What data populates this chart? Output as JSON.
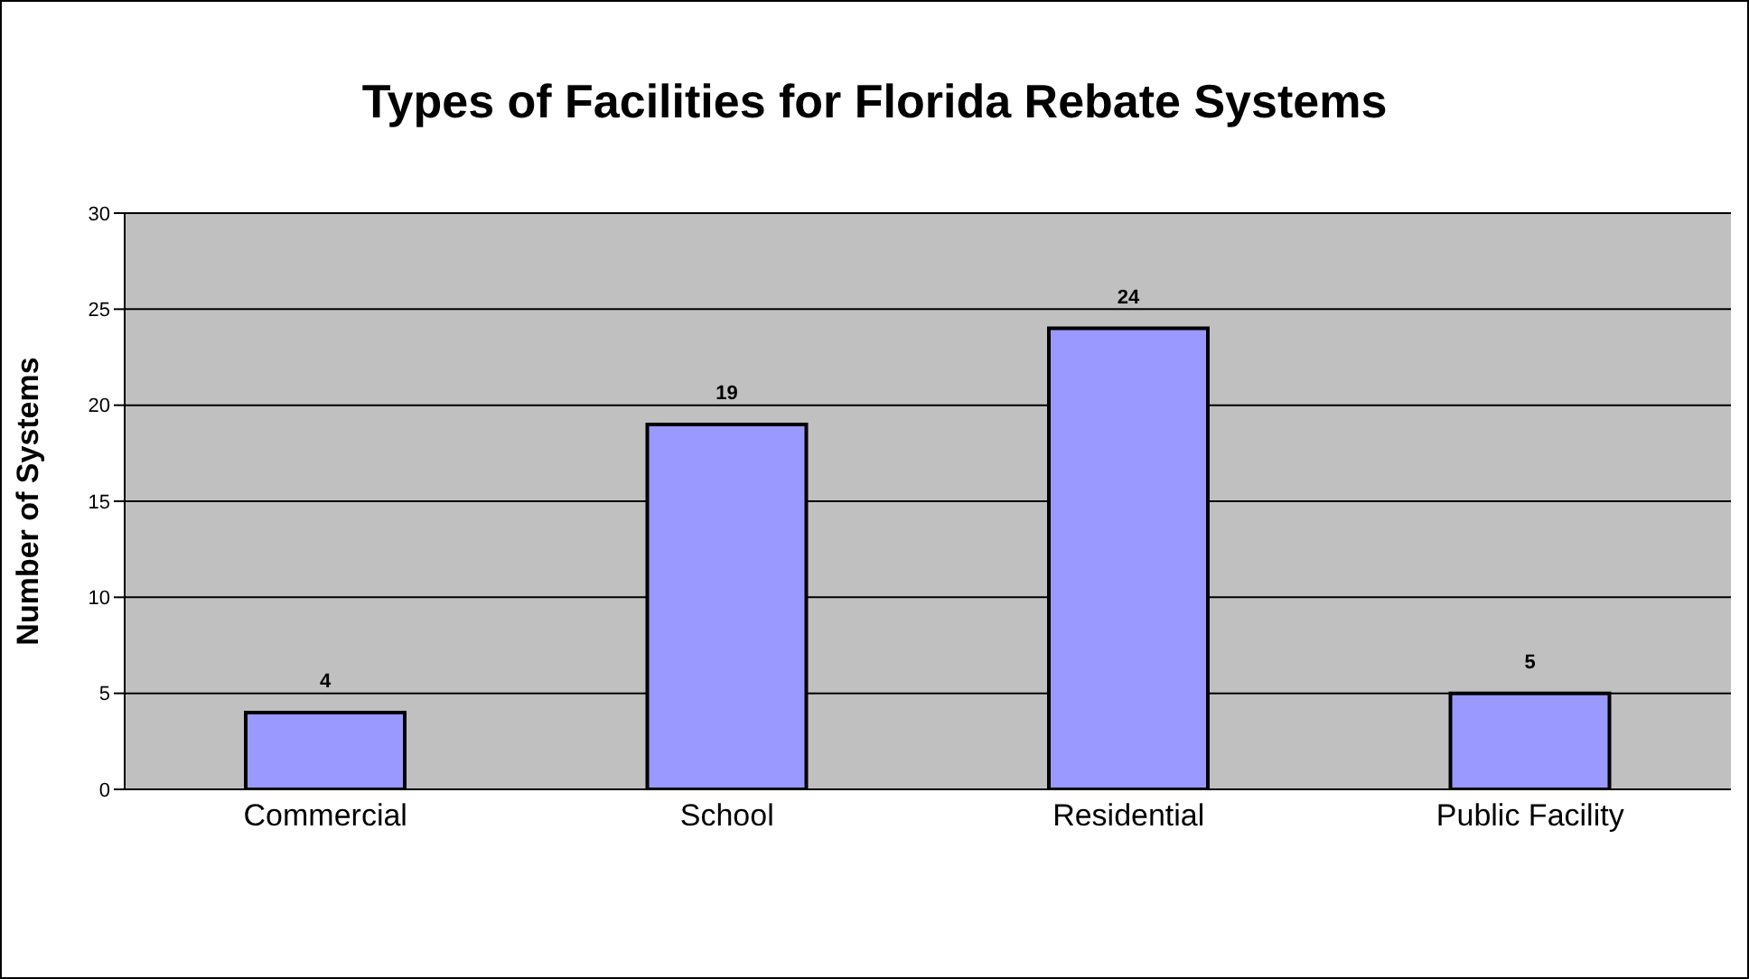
{
  "chart_data": {
    "type": "bar",
    "title": "Types of Facilities for Florida Rebate Systems",
    "ylabel": "Number of Systems",
    "categories": [
      "Commercial",
      "School",
      "Residential",
      "Public Facility"
    ],
    "values": [
      4,
      19,
      24,
      5
    ],
    "color": "#9999ff",
    "ylim": [
      0,
      30
    ],
    "yticks": [
      0,
      5,
      10,
      15,
      20,
      25,
      30
    ],
    "grid": "y",
    "data_labels": true
  }
}
